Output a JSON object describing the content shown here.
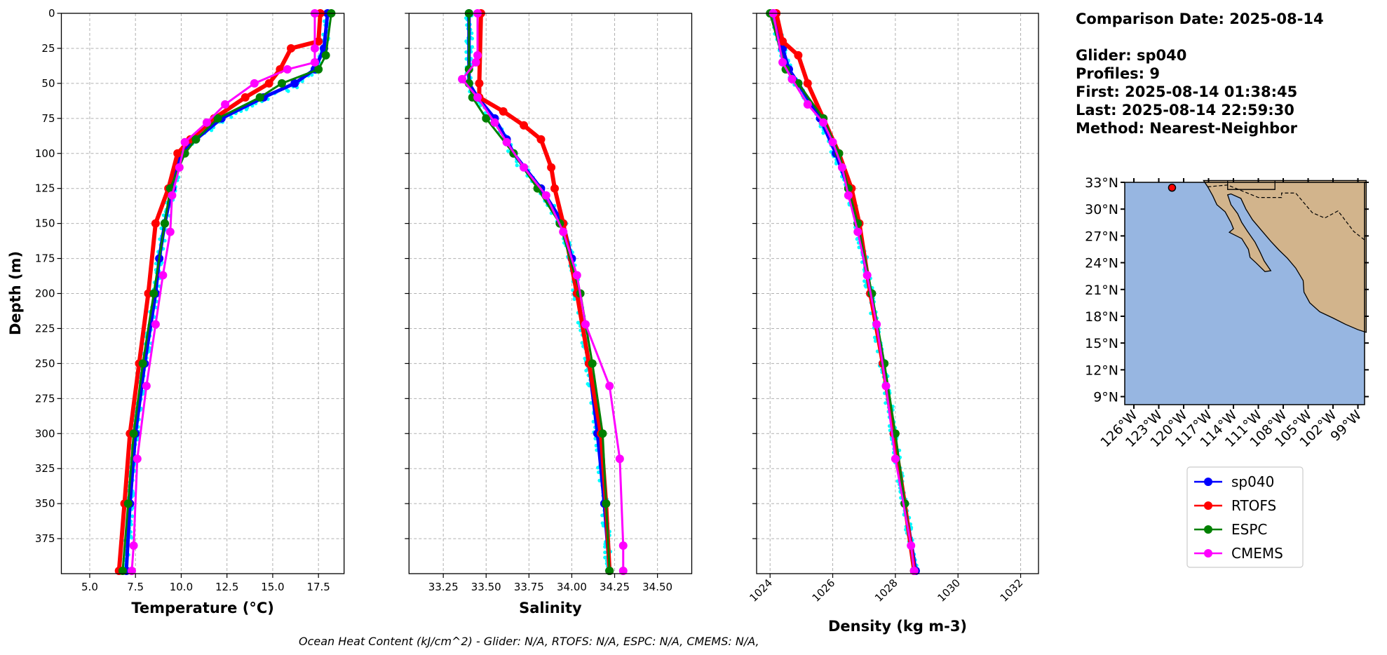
{
  "info": {
    "comparison_date": "Comparison Date: 2025-08-14",
    "glider": "Glider: sp040",
    "profiles": "Profiles: 9",
    "first": "First: 2025-08-14 01:38:45",
    "last": "Last: 2025-08-14 22:59:30",
    "method": "Method: Nearest-Neighbor"
  },
  "footer": "Ocean Heat Content (kJ/cm^2) - Glider: N/A,  RTOFS: N/A,  ESPC: N/A,  CMEMS: N/A,",
  "legend": [
    {
      "label": "sp040",
      "color": "#0000ff"
    },
    {
      "label": "RTOFS",
      "color": "#ff0000"
    },
    {
      "label": "ESPC",
      "color": "#008000"
    },
    {
      "label": "CMEMS",
      "color": "#ff00ff"
    }
  ],
  "map": {
    "lat_ticks": [
      "33°N",
      "30°N",
      "27°N",
      "24°N",
      "21°N",
      "18°N",
      "15°N",
      "12°N",
      "9°N"
    ],
    "lat_values": [
      33,
      30,
      27,
      24,
      21,
      18,
      15,
      12,
      9
    ],
    "lon_ticks": [
      "126°W",
      "123°W",
      "120°W",
      "117°W",
      "114°W",
      "111°W",
      "108°W",
      "105°W",
      "102°W",
      "99°W"
    ],
    "lon_values": [
      -126,
      -123,
      -120,
      -117,
      -114,
      -111,
      -108,
      -105,
      -102,
      -99
    ],
    "glider_position": {
      "lon": -121.4,
      "lat": 32.4
    },
    "ocean_color": "#97b6e1",
    "land_color": "#d2b48c"
  },
  "chart_data": [
    {
      "type": "line",
      "ylabel": "Depth (m)",
      "xlabel": "Temperature (°C)",
      "ylim": [
        400,
        0
      ],
      "yticks": [
        0,
        25,
        50,
        75,
        100,
        125,
        150,
        175,
        200,
        225,
        250,
        275,
        300,
        325,
        350,
        375
      ],
      "xlim": [
        3.45,
        18.9
      ],
      "xticks": [
        5.0,
        7.5,
        10.0,
        12.5,
        15.0,
        17.5
      ],
      "xtick_labels": [
        "5.0",
        "7.5",
        "10.0",
        "12.5",
        "15.0",
        "17.5"
      ],
      "grid": true,
      "series": [
        {
          "name": "sp040",
          "color": "#0000ff",
          "depth": [
            0,
            25,
            40,
            50,
            60,
            75,
            90,
            100,
            125,
            150,
            175,
            200,
            250,
            300,
            350,
            398
          ],
          "values": [
            18.0,
            17.8,
            17.3,
            16.2,
            14.5,
            12.2,
            10.8,
            10.0,
            9.5,
            9.1,
            8.8,
            8.6,
            8.0,
            7.5,
            7.2,
            7.0
          ]
        },
        {
          "name": "RTOFS",
          "color": "#ff0000",
          "depth": [
            0,
            20,
            25,
            40,
            50,
            60,
            75,
            90,
            100,
            125,
            150,
            200,
            250,
            300,
            350,
            398
          ],
          "values": [
            17.6,
            17.5,
            16.0,
            15.4,
            14.8,
            13.5,
            11.8,
            10.5,
            9.8,
            9.3,
            8.6,
            8.2,
            7.7,
            7.2,
            6.9,
            6.6
          ]
        },
        {
          "name": "ESPC",
          "color": "#008000",
          "depth": [
            0,
            30,
            40,
            50,
            60,
            75,
            90,
            100,
            125,
            150,
            200,
            250,
            300,
            350,
            398
          ],
          "values": [
            18.2,
            17.9,
            17.5,
            15.5,
            14.3,
            12.0,
            10.8,
            10.2,
            9.4,
            9.1,
            8.5,
            7.9,
            7.4,
            7.1,
            6.8
          ]
        },
        {
          "name": "CMEMS",
          "color": "#ff00ff",
          "depth": [
            0,
            25,
            35,
            40,
            50,
            65,
            78,
            92,
            110,
            130,
            156,
            187,
            222,
            266,
            318,
            380,
            398
          ],
          "values": [
            17.3,
            17.3,
            17.3,
            15.8,
            14.0,
            12.4,
            11.4,
            10.2,
            9.9,
            9.5,
            9.4,
            9.0,
            8.6,
            8.1,
            7.6,
            7.4,
            7.3
          ]
        }
      ]
    },
    {
      "type": "line",
      "xlabel": "Salinity",
      "ylim": [
        400,
        0
      ],
      "xlim": [
        33.05,
        34.7
      ],
      "xticks": [
        33.25,
        33.5,
        33.75,
        34.0,
        34.25,
        34.5
      ],
      "xtick_labels": [
        "33.25",
        "33.50",
        "33.75",
        "34.00",
        "34.25",
        "34.50"
      ],
      "grid": true,
      "series": [
        {
          "name": "sp040",
          "color": "#0000ff",
          "depth": [
            0,
            50,
            60,
            75,
            90,
            100,
            125,
            150,
            175,
            200,
            250,
            300,
            350,
            398
          ],
          "values": [
            33.4,
            33.4,
            33.45,
            33.55,
            33.62,
            33.66,
            33.82,
            33.95,
            34.0,
            34.03,
            34.1,
            34.15,
            34.19,
            34.22
          ]
        },
        {
          "name": "RTOFS",
          "color": "#ff0000",
          "depth": [
            0,
            50,
            60,
            70,
            80,
            90,
            110,
            125,
            150,
            200,
            250,
            300,
            350,
            398
          ],
          "values": [
            33.47,
            33.46,
            33.46,
            33.6,
            33.72,
            33.82,
            33.88,
            33.9,
            33.95,
            34.03,
            34.1,
            34.17,
            34.2,
            34.22
          ]
        },
        {
          "name": "ESPC",
          "color": "#008000",
          "depth": [
            0,
            40,
            50,
            60,
            75,
            100,
            125,
            150,
            200,
            250,
            300,
            350,
            398
          ],
          "values": [
            33.4,
            33.4,
            33.4,
            33.42,
            33.5,
            33.66,
            33.8,
            33.93,
            34.05,
            34.12,
            34.18,
            34.2,
            34.22
          ]
        },
        {
          "name": "CMEMS",
          "color": "#ff00ff",
          "depth": [
            0,
            30,
            35,
            47,
            60,
            78,
            92,
            110,
            130,
            156,
            187,
            222,
            266,
            318,
            380,
            398
          ],
          "values": [
            33.45,
            33.45,
            33.44,
            33.36,
            33.45,
            33.55,
            33.62,
            33.72,
            33.85,
            33.95,
            34.03,
            34.08,
            34.22,
            34.28,
            34.3,
            34.3
          ]
        }
      ]
    },
    {
      "type": "line",
      "xlabel": "Density (kg m-3)",
      "ylim": [
        400,
        0
      ],
      "xlim": [
        1023.57,
        1032.57
      ],
      "xticks": [
        1024,
        1026,
        1028,
        1030,
        1032
      ],
      "xtick_labels": [
        "1024",
        "1026",
        "1028",
        "1030",
        "1032"
      ],
      "grid": true,
      "series": [
        {
          "name": "sp040",
          "color": "#0000ff",
          "depth": [
            0,
            25,
            40,
            50,
            75,
            100,
            125,
            150,
            200,
            250,
            300,
            350,
            398
          ],
          "values": [
            1024.1,
            1024.4,
            1024.6,
            1024.9,
            1025.6,
            1026.1,
            1026.5,
            1026.8,
            1027.2,
            1027.6,
            1027.95,
            1028.3,
            1028.65
          ]
        },
        {
          "name": "RTOFS",
          "color": "#ff0000",
          "depth": [
            0,
            20,
            30,
            50,
            75,
            100,
            125,
            150,
            200,
            250,
            300,
            350,
            398
          ],
          "values": [
            1024.2,
            1024.4,
            1024.9,
            1025.2,
            1025.7,
            1026.2,
            1026.6,
            1026.85,
            1027.2,
            1027.6,
            1027.95,
            1028.3,
            1028.6
          ]
        },
        {
          "name": "ESPC",
          "color": "#008000",
          "depth": [
            0,
            40,
            50,
            75,
            100,
            125,
            150,
            200,
            250,
            300,
            350,
            398
          ],
          "values": [
            1024.0,
            1024.5,
            1024.9,
            1025.7,
            1026.2,
            1026.5,
            1026.8,
            1027.25,
            1027.65,
            1028.0,
            1028.3,
            1028.6
          ]
        },
        {
          "name": "CMEMS",
          "color": "#ff00ff",
          "depth": [
            0,
            35,
            47,
            65,
            78,
            92,
            110,
            130,
            156,
            187,
            222,
            266,
            318,
            380,
            398
          ],
          "values": [
            1024.1,
            1024.4,
            1024.7,
            1025.2,
            1025.7,
            1026.0,
            1026.3,
            1026.5,
            1026.8,
            1027.1,
            1027.4,
            1027.7,
            1028.0,
            1028.5,
            1028.6
          ]
        }
      ]
    }
  ]
}
